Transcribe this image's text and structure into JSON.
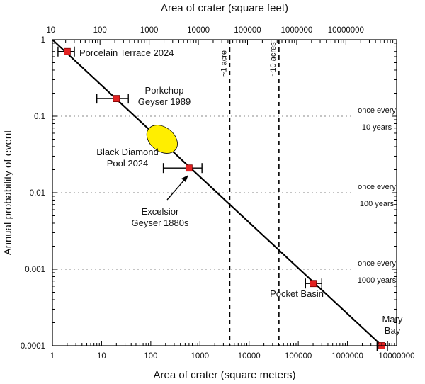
{
  "chart_data": {
    "type": "scatter",
    "x_axis_bottom": {
      "label": "Area of crater (square meters)",
      "scale": "log",
      "range": [
        1,
        10000000
      ],
      "ticks": [
        1,
        10,
        100,
        1000,
        10000,
        100000,
        1000000,
        10000000
      ],
      "tick_labels": [
        "1",
        "10",
        "100",
        "1000",
        "10000",
        "100000",
        "1000000",
        "10000000"
      ]
    },
    "x_axis_top": {
      "label": "Area of crater (square feet)",
      "scale": "log",
      "ticks": [
        10,
        100,
        1000,
        10000,
        100000,
        1000000,
        10000000
      ],
      "tick_labels": [
        "10",
        "100",
        "1000",
        "10000",
        "100000",
        "1000000",
        "10000000"
      ]
    },
    "y_axis": {
      "label": "Annual probability of event",
      "scale": "log",
      "range": [
        0.0001,
        1
      ],
      "ticks": [
        1,
        0.1,
        0.01,
        0.001,
        0.0001
      ],
      "tick_labels": [
        "1",
        "0.1",
        "0.01",
        "0.001",
        "0.0001"
      ]
    },
    "trend_line": {
      "x": [
        1,
        5000000
      ],
      "y": [
        1,
        0.0001
      ]
    },
    "points": [
      {
        "name": "Porcelain Terrace 2024",
        "x": 2,
        "y": 0.7,
        "x_err": [
          1.3,
          2.8
        ]
      },
      {
        "name": "Porkchop Geyser 1989",
        "x": 20,
        "y": 0.17,
        "x_err": [
          8,
          35
        ]
      },
      {
        "name": "Excelsior Geyser 1880s",
        "x": 600,
        "y": 0.021,
        "x_err": [
          180,
          1100
        ]
      },
      {
        "name": "Pocket Basin",
        "x": 200000,
        "y": 0.00065,
        "x_err": [
          140000,
          300000
        ]
      },
      {
        "name": "Mary Bay",
        "x": 5000000,
        "y": 0.0001,
        "x_err": [
          4000000,
          6500000
        ]
      }
    ],
    "ellipse": {
      "name": "Black Diamond Pool 2024",
      "x": 170,
      "y": 0.05
    },
    "reference_lines": [
      {
        "label": "~1 acre",
        "x": 4047
      },
      {
        "label": "~10 acres",
        "x": 40470
      }
    ],
    "frequency_lines": [
      {
        "y": 0.1,
        "label": "once every 10 years",
        "lines": [
          "once every",
          "10 years"
        ]
      },
      {
        "y": 0.01,
        "label": "once every 100 years",
        "lines": [
          "once every",
          "100 years"
        ]
      },
      {
        "y": 0.001,
        "label": "once every 1000 years",
        "lines": [
          "once every",
          "1000 years"
        ]
      }
    ],
    "annotations": [
      {
        "name": "Porcelain Terrace 2024",
        "lines": [
          "Porcelain Terrace 2024"
        ]
      },
      {
        "name": "Porkchop Geyser 1989",
        "lines": [
          "Porkchop",
          "Geyser 1989"
        ]
      },
      {
        "name": "Black Diamond Pool 2024",
        "lines": [
          "Black Diamond",
          "Pool 2024"
        ]
      },
      {
        "name": "Excelsior Geyser 1880s",
        "lines": [
          "Excelsior",
          "Geyser 1880s"
        ]
      },
      {
        "name": "Pocket Basin",
        "lines": [
          "Pocket Basin"
        ]
      },
      {
        "name": "Mary Bay",
        "lines": [
          "Mary",
          "Bay"
        ]
      }
    ],
    "colors": {
      "marker": "#e32222",
      "ellipse": "#ffee00",
      "line": "#000000",
      "grid": "#888888"
    }
  }
}
